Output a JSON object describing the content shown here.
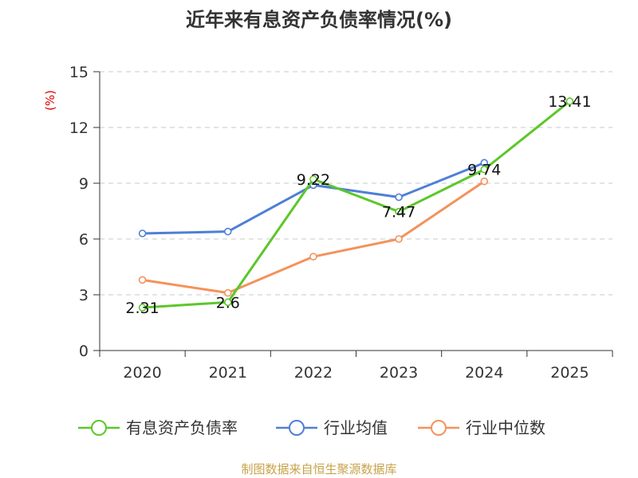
{
  "chart_data": {
    "type": "line",
    "title": "近年来有息资产负债率情况(%)",
    "ylabel": "(%)",
    "categories": [
      "2020",
      "2021",
      "2022",
      "2023",
      "2024",
      "2025"
    ],
    "ylim": [
      0,
      15
    ],
    "yticks": [
      0,
      3,
      6,
      9,
      12,
      15
    ],
    "grid": true,
    "legend_position": "bottom",
    "series": [
      {
        "name": "有息资产负债率",
        "color": "#5cc72a",
        "values": [
          2.31,
          2.6,
          9.22,
          7.47,
          9.74,
          13.41
        ],
        "labels": [
          "2.31",
          "2.6",
          "9.22",
          "7.47",
          "9.74",
          "13.41"
        ]
      },
      {
        "name": "行业均值",
        "color": "#4e7fd6",
        "values": [
          6.3,
          6.4,
          8.9,
          8.25,
          10.1,
          null
        ]
      },
      {
        "name": "行业中位数",
        "color": "#f4925c",
        "values": [
          3.8,
          3.1,
          5.05,
          6.0,
          9.1,
          null
        ]
      }
    ],
    "source": "制图数据来自恒生聚源数据库"
  }
}
